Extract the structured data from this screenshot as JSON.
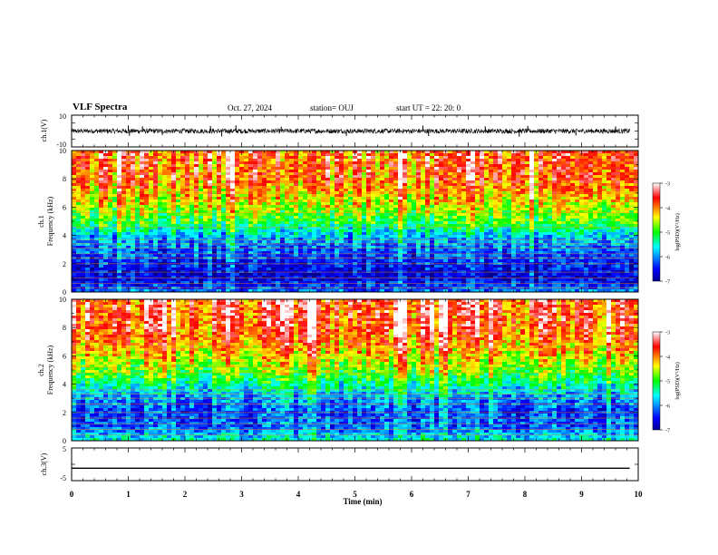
{
  "header": {
    "title": "VLF Spectra",
    "date": "Oct. 27, 2024",
    "station": "station= OUJ",
    "start_ut": "start  UT =   22: 20: 0"
  },
  "chart_data": [
    {
      "type": "line",
      "panel": "ch1-waveform",
      "ylabel": "ch.1(V)",
      "ylim": [
        -10,
        10
      ],
      "y_ticks": [
        "10",
        "-10"
      ],
      "x_range_min": [
        0,
        10
      ],
      "data_extent_min": [
        0,
        9.85
      ],
      "baseline_v": 0,
      "noise_amplitude_v": 1.5,
      "spikes": [
        {
          "t": 1.0,
          "v": 3.5
        },
        {
          "t": 1.02,
          "v": -3.0
        },
        {
          "t": 1.25,
          "v": 3.0
        },
        {
          "t": 1.6,
          "v": -2.5
        },
        {
          "t": 2.45,
          "v": 3.2
        },
        {
          "t": 2.65,
          "v": -3.4
        },
        {
          "t": 2.9,
          "v": 3.6
        },
        {
          "t": 3.7,
          "v": 2.8
        },
        {
          "t": 4.85,
          "v": -3.0
        },
        {
          "t": 6.2,
          "v": 3.4
        },
        {
          "t": 6.3,
          "v": -3.2
        },
        {
          "t": 7.3,
          "v": 3.0
        },
        {
          "t": 7.9,
          "v": -3.5
        },
        {
          "t": 8.05,
          "v": 3.3
        },
        {
          "t": 8.9,
          "v": -2.8
        },
        {
          "t": 9.6,
          "v": 2.9
        }
      ],
      "color": "#000000"
    },
    {
      "type": "heatmap",
      "panel": "ch1-spectrogram",
      "ylabel_line1": "ch.1",
      "ylabel_line2": "Frequency  (kHz)",
      "ylim": [
        0,
        10
      ],
      "y_ticks": [
        "0",
        "2",
        "4",
        "6",
        "8",
        "10"
      ],
      "colorbar": {
        "label": "log(PSD)(V²/Hz)",
        "range": [
          -7,
          -3
        ],
        "ticks": [
          "-3",
          "-4",
          "-5",
          "-6",
          "-7"
        ]
      },
      "log_psd_profile_khz": [
        {
          "f": 0.0,
          "v": -6.1
        },
        {
          "f": 1.0,
          "v": -6.7
        },
        {
          "f": 2.0,
          "v": -6.5
        },
        {
          "f": 3.0,
          "v": -6.2
        },
        {
          "f": 4.0,
          "v": -5.8
        },
        {
          "f": 5.0,
          "v": -5.0
        },
        {
          "f": 6.0,
          "v": -4.6
        },
        {
          "f": 7.0,
          "v": -4.2
        },
        {
          "f": 8.0,
          "v": -3.9
        },
        {
          "f": 10.0,
          "v": -3.8
        }
      ],
      "horizontal_lines_khz": [
        0.3,
        0.6,
        1.0,
        1.4,
        2.0,
        2.4,
        2.7,
        3.1,
        3.4,
        3.7,
        4.6,
        5.6,
        7.0
      ]
    },
    {
      "type": "heatmap",
      "panel": "ch2-spectrogram",
      "ylabel_line1": "ch.2",
      "ylabel_line2": "Frequency  (kHz)",
      "ylim": [
        0,
        10
      ],
      "y_ticks": [
        "0",
        "2",
        "4",
        "6",
        "8",
        "10"
      ],
      "colorbar": {
        "label": "log(PSD)(V²/Hz)",
        "range": [
          -7,
          -3
        ],
        "ticks": [
          "-3",
          "-4",
          "-5",
          "-6",
          "-7"
        ]
      },
      "log_psd_profile_khz": [
        {
          "f": 0.0,
          "v": -5.5
        },
        {
          "f": 1.0,
          "v": -6.2
        },
        {
          "f": 2.0,
          "v": -6.3
        },
        {
          "f": 3.0,
          "v": -6.0
        },
        {
          "f": 4.0,
          "v": -5.4
        },
        {
          "f": 5.0,
          "v": -4.8
        },
        {
          "f": 6.0,
          "v": -4.4
        },
        {
          "f": 7.0,
          "v": -4.0
        },
        {
          "f": 8.0,
          "v": -3.8
        },
        {
          "f": 10.0,
          "v": -3.7
        }
      ],
      "horizontal_lines_khz": [
        0.4,
        0.8,
        1.2,
        1.6,
        2.0,
        2.6,
        3.0,
        3.3,
        3.6,
        4.8,
        5.2,
        6.6
      ]
    },
    {
      "type": "line",
      "panel": "ch3-waveform",
      "ylabel": "ch.3(V)",
      "ylim": [
        -5,
        5
      ],
      "y_ticks": [
        "5",
        "-5"
      ],
      "data_extent_min": [
        0,
        9.85
      ],
      "value_v": -1.2,
      "color": "#000000"
    }
  ],
  "x_axis": {
    "label": "Time  (min)",
    "ticks": [
      "0",
      "1",
      "2",
      "3",
      "4",
      "5",
      "6",
      "7",
      "8",
      "9",
      "10"
    ],
    "range": [
      0,
      10
    ]
  }
}
